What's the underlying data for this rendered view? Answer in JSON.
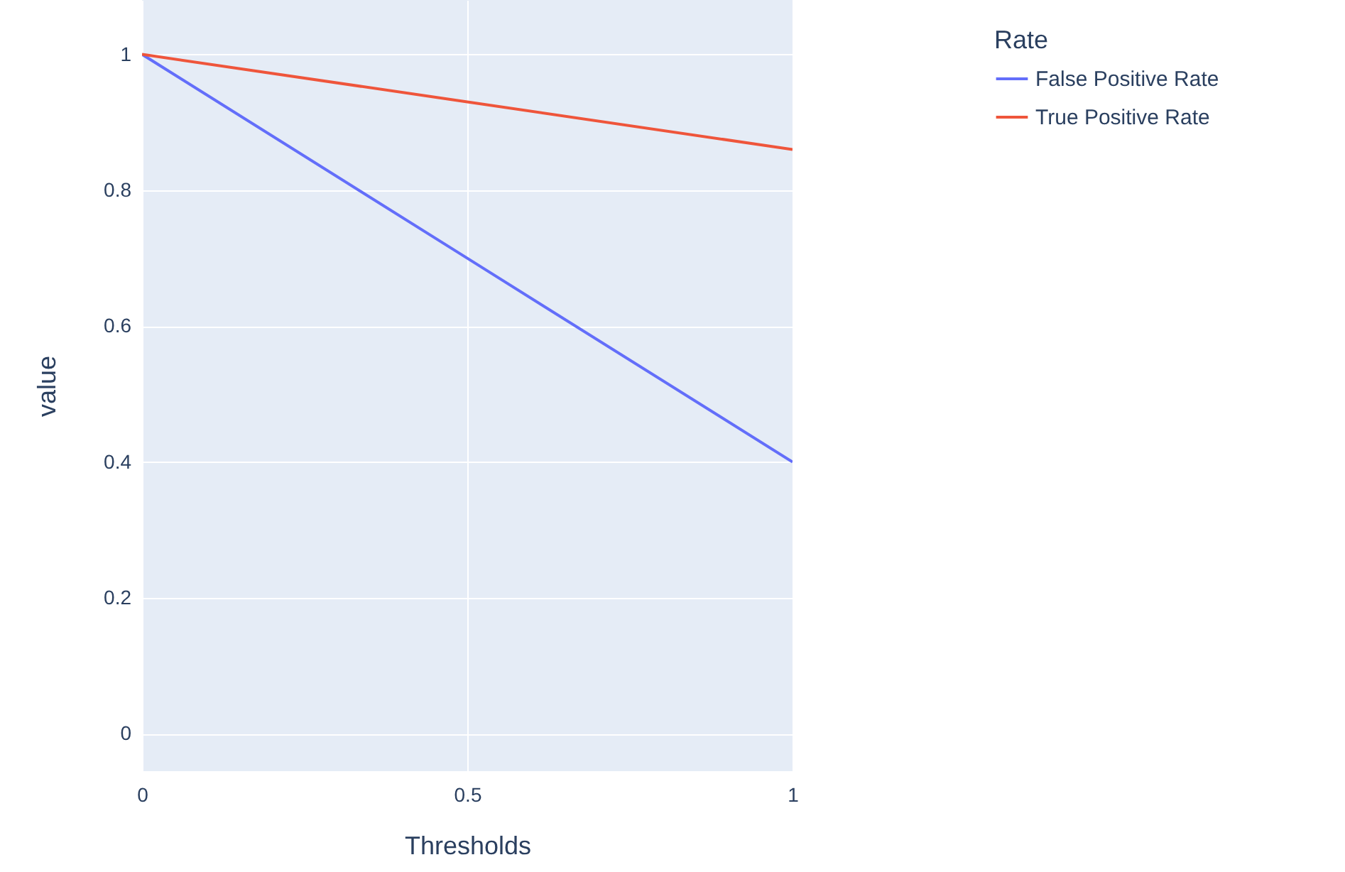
{
  "chart_data": {
    "type": "line",
    "xlabel": "Thresholds",
    "ylabel": "value",
    "legend_title": "Rate",
    "x": [
      0,
      0.5,
      1
    ],
    "series": [
      {
        "name": "False Positive Rate",
        "color": "#636efa",
        "values": [
          1,
          0.7,
          0.4
        ]
      },
      {
        "name": "True Positive Rate",
        "color": "#ef553b",
        "values": [
          1,
          0.93,
          0.86
        ]
      }
    ],
    "xlim": [
      0,
      1
    ],
    "xticks": [
      0,
      0.5,
      1
    ],
    "ylim": [
      -0.055,
      1.08
    ],
    "yticks": [
      0,
      0.2,
      0.4,
      0.6,
      0.8,
      1
    ],
    "grid": true,
    "legend": "top right",
    "line_style": "solid",
    "marker": "none"
  }
}
